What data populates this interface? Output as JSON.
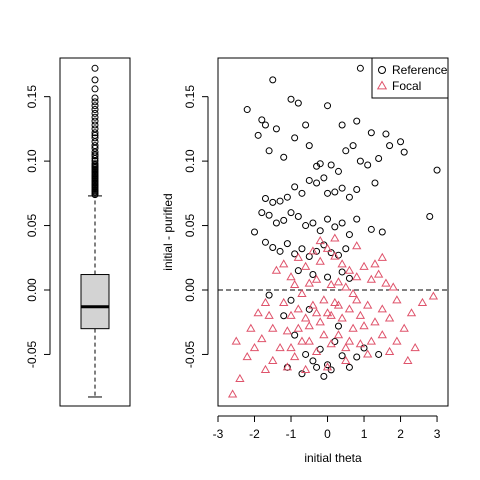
{
  "chart_data": [
    {
      "type": "boxplot",
      "title": "",
      "ylim": [
        -0.09,
        0.18
      ],
      "yticks": [
        -0.05,
        0.0,
        0.05,
        0.1,
        0.15
      ],
      "ytick_labels": [
        "-0.05",
        "0.00",
        "0.05",
        "0.10",
        "0.15"
      ],
      "box": {
        "whisker_low": -0.083,
        "q1": -0.03,
        "median": -0.013,
        "q3": 0.012,
        "whisker_high": 0.073,
        "fill_color": "#d3d3d3"
      },
      "outliers": [
        0.074,
        0.075,
        0.076,
        0.077,
        0.078,
        0.079,
        0.08,
        0.081,
        0.082,
        0.083,
        0.084,
        0.085,
        0.086,
        0.087,
        0.088,
        0.089,
        0.09,
        0.091,
        0.092,
        0.093,
        0.094,
        0.095,
        0.096,
        0.097,
        0.098,
        0.1,
        0.102,
        0.104,
        0.105,
        0.107,
        0.11,
        0.112,
        0.115,
        0.118,
        0.12,
        0.122,
        0.125,
        0.128,
        0.131,
        0.134,
        0.137,
        0.14,
        0.143,
        0.146,
        0.149,
        0.156,
        0.163,
        0.172
      ]
    },
    {
      "type": "scatter",
      "title": "",
      "xlabel": "initial theta",
      "ylabel": "initial - purified",
      "xlim": [
        -3.0,
        3.3
      ],
      "ylim": [
        -0.09,
        0.18
      ],
      "xticks": [
        -3,
        -2,
        -1,
        0,
        1,
        2,
        3
      ],
      "xtick_labels": [
        "-3",
        "-2",
        "-1",
        "0",
        "1",
        "2",
        "3"
      ],
      "yticks": [
        -0.05,
        0.0,
        0.05,
        0.1,
        0.15
      ],
      "ytick_labels": [
        "-0.05",
        "0.00",
        "0.05",
        "0.10",
        "0.15"
      ],
      "hline": {
        "y": 0,
        "style": "dashed"
      },
      "legend": {
        "position": "top-right",
        "entries": [
          {
            "label": "Reference",
            "marker": "circle",
            "color": "#000000"
          },
          {
            "label": "Focal",
            "marker": "triangle",
            "color": "#df536b"
          }
        ]
      },
      "series": [
        {
          "name": "Reference",
          "marker": "circle",
          "color": "#000000",
          "points": [
            [
              -1.5,
              0.163
            ],
            [
              0.9,
              0.172
            ],
            [
              1.3,
              0.168
            ],
            [
              -2.2,
              0.14
            ],
            [
              -1.8,
              0.132
            ],
            [
              -1.9,
              0.12
            ],
            [
              -1.7,
              0.128
            ],
            [
              -1.4,
              0.125
            ],
            [
              -1.0,
              0.148
            ],
            [
              -0.8,
              0.145
            ],
            [
              0.0,
              0.143
            ],
            [
              0.4,
              0.128
            ],
            [
              0.8,
              0.131
            ],
            [
              1.2,
              0.122
            ],
            [
              1.6,
              0.121
            ],
            [
              2.1,
              0.107
            ],
            [
              -1.6,
              0.108
            ],
            [
              -1.2,
              0.103
            ],
            [
              -0.9,
              0.118
            ],
            [
              -0.6,
              0.128
            ],
            [
              -0.5,
              0.112
            ],
            [
              -0.3,
              0.096
            ],
            [
              -0.2,
              0.098
            ],
            [
              0.1,
              0.097
            ],
            [
              0.3,
              0.092
            ],
            [
              0.5,
              0.108
            ],
            [
              0.7,
              0.112
            ],
            [
              0.9,
              0.1
            ],
            [
              1.1,
              0.097
            ],
            [
              1.4,
              0.102
            ],
            [
              1.7,
              0.112
            ],
            [
              2.0,
              0.115
            ],
            [
              3.0,
              0.093
            ],
            [
              2.8,
              0.057
            ],
            [
              1.3,
              0.083
            ],
            [
              -1.7,
              0.071
            ],
            [
              -1.5,
              0.068
            ],
            [
              -1.3,
              0.069
            ],
            [
              -1.1,
              0.072
            ],
            [
              -0.9,
              0.08
            ],
            [
              -0.7,
              0.075
            ],
            [
              -0.5,
              0.085
            ],
            [
              -0.3,
              0.083
            ],
            [
              -0.1,
              0.087
            ],
            [
              0.0,
              0.075
            ],
            [
              0.2,
              0.076
            ],
            [
              0.4,
              0.079
            ],
            [
              0.6,
              0.072
            ],
            [
              0.8,
              0.078
            ],
            [
              -2.0,
              0.045
            ],
            [
              -1.8,
              0.06
            ],
            [
              -1.6,
              0.058
            ],
            [
              -1.4,
              0.052
            ],
            [
              -1.2,
              0.054
            ],
            [
              -1.0,
              0.06
            ],
            [
              -0.8,
              0.057
            ],
            [
              -0.6,
              0.05
            ],
            [
              -0.4,
              0.052
            ],
            [
              -0.2,
              0.046
            ],
            [
              0.0,
              0.055
            ],
            [
              0.2,
              0.049
            ],
            [
              0.4,
              0.052
            ],
            [
              0.6,
              0.043
            ],
            [
              0.8,
              0.055
            ],
            [
              1.2,
              0.047
            ],
            [
              1.5,
              0.045
            ],
            [
              -1.7,
              0.037
            ],
            [
              -1.5,
              0.033
            ],
            [
              -1.3,
              0.03
            ],
            [
              -1.1,
              0.036
            ],
            [
              -0.9,
              0.028
            ],
            [
              -0.7,
              0.032
            ],
            [
              -0.5,
              0.026
            ],
            [
              -0.3,
              0.03
            ],
            [
              -0.1,
              0.035
            ],
            [
              0.1,
              0.029
            ],
            [
              0.3,
              0.027
            ],
            [
              0.5,
              0.032
            ],
            [
              -0.8,
              0.015
            ],
            [
              -0.4,
              0.012
            ],
            [
              0.0,
              0.01
            ],
            [
              0.4,
              0.014
            ],
            [
              0.6,
              0.009
            ],
            [
              -1.6,
              -0.004
            ],
            [
              -1.2,
              -0.02
            ],
            [
              -0.9,
              -0.035
            ],
            [
              -0.6,
              -0.05
            ],
            [
              -0.4,
              -0.055
            ],
            [
              -0.2,
              -0.046
            ],
            [
              0.0,
              -0.058
            ],
            [
              0.2,
              -0.04
            ],
            [
              0.4,
              -0.051
            ],
            [
              0.6,
              -0.06
            ],
            [
              0.8,
              -0.052
            ],
            [
              1.0,
              -0.045
            ],
            [
              1.4,
              -0.05
            ],
            [
              -1.1,
              -0.06
            ],
            [
              -0.7,
              -0.065
            ],
            [
              -0.3,
              -0.06
            ],
            [
              0.1,
              -0.062
            ],
            [
              -0.1,
              -0.067
            ],
            [
              0.3,
              -0.028
            ],
            [
              -0.5,
              -0.015
            ],
            [
              -1.0,
              -0.008
            ]
          ]
        },
        {
          "name": "Focal",
          "marker": "triangle",
          "color": "#df536b",
          "points": [
            [
              -2.6,
              -0.081
            ],
            [
              -2.4,
              -0.069
            ],
            [
              -2.2,
              -0.052
            ],
            [
              -2.5,
              -0.04
            ],
            [
              -2.1,
              -0.03
            ],
            [
              -1.9,
              -0.018
            ],
            [
              -1.7,
              -0.01
            ],
            [
              -1.5,
              -0.03
            ],
            [
              -1.3,
              -0.045
            ],
            [
              -1.1,
              -0.06
            ],
            [
              -0.9,
              -0.052
            ],
            [
              -0.7,
              -0.04
            ],
            [
              -0.5,
              -0.028
            ],
            [
              -0.3,
              -0.018
            ],
            [
              -0.1,
              -0.008
            ],
            [
              0.1,
              -0.02
            ],
            [
              0.3,
              -0.035
            ],
            [
              0.5,
              -0.045
            ],
            [
              0.7,
              -0.03
            ],
            [
              0.9,
              -0.02
            ],
            [
              1.1,
              -0.012
            ],
            [
              1.3,
              -0.025
            ],
            [
              1.5,
              -0.035
            ],
            [
              1.7,
              -0.048
            ],
            [
              1.9,
              -0.04
            ],
            [
              2.1,
              -0.03
            ],
            [
              2.3,
              -0.018
            ],
            [
              2.6,
              -0.01
            ],
            [
              2.9,
              -0.005
            ],
            [
              -1.4,
              0.015
            ],
            [
              -1.2,
              0.02
            ],
            [
              -1.0,
              0.01
            ],
            [
              -0.8,
              0.025
            ],
            [
              -0.6,
              0.018
            ],
            [
              -0.4,
              0.03
            ],
            [
              -0.2,
              0.022
            ],
            [
              0.0,
              0.032
            ],
            [
              0.2,
              0.026
            ],
            [
              0.4,
              0.02
            ],
            [
              0.6,
              0.015
            ],
            [
              0.8,
              0.01
            ],
            [
              1.0,
              0.018
            ],
            [
              1.2,
              0.008
            ],
            [
              1.4,
              0.012
            ],
            [
              1.6,
              0.005
            ],
            [
              1.8,
              0.002
            ],
            [
              -1.2,
              -0.01
            ],
            [
              -1.0,
              -0.02
            ],
            [
              -0.8,
              -0.015
            ],
            [
              -0.6,
              -0.022
            ],
            [
              -0.4,
              -0.012
            ],
            [
              -0.2,
              -0.025
            ],
            [
              0.0,
              -0.018
            ],
            [
              0.2,
              -0.01
            ],
            [
              0.4,
              -0.022
            ],
            [
              0.6,
              -0.015
            ],
            [
              0.8,
              -0.008
            ],
            [
              1.0,
              -0.028
            ],
            [
              1.2,
              -0.04
            ],
            [
              -1.6,
              -0.02
            ],
            [
              -1.8,
              -0.038
            ],
            [
              -2.0,
              -0.045
            ],
            [
              -0.5,
              0.005
            ],
            [
              -0.3,
              0.008
            ],
            [
              0.1,
              0.004
            ],
            [
              0.3,
              0.006
            ],
            [
              0.5,
              0.002
            ],
            [
              0.7,
              -0.003
            ],
            [
              -0.7,
              -0.003
            ],
            [
              -0.9,
              0.004
            ],
            [
              -1.1,
              -0.032
            ],
            [
              -0.1,
              -0.035
            ],
            [
              0.1,
              -0.042
            ],
            [
              0.3,
              -0.012
            ],
            [
              -0.5,
              -0.04
            ],
            [
              -0.3,
              -0.048
            ],
            [
              0.5,
              -0.055
            ],
            [
              0.9,
              -0.042
            ],
            [
              1.1,
              -0.05
            ],
            [
              1.5,
              -0.015
            ],
            [
              1.7,
              -0.022
            ],
            [
              1.9,
              -0.008
            ],
            [
              2.2,
              -0.055
            ],
            [
              2.4,
              -0.045
            ],
            [
              -1.5,
              -0.055
            ],
            [
              -1.7,
              -0.062
            ],
            [
              -0.6,
              -0.062
            ],
            [
              0.0,
              -0.06
            ],
            [
              0.6,
              -0.04
            ],
            [
              1.3,
              0.02
            ],
            [
              1.5,
              0.025
            ],
            [
              -0.2,
              0.038
            ],
            [
              0.2,
              0.04
            ],
            [
              0.8,
              0.034
            ],
            [
              -1.0,
              -0.045
            ],
            [
              -0.8,
              -0.03
            ]
          ]
        }
      ]
    }
  ]
}
